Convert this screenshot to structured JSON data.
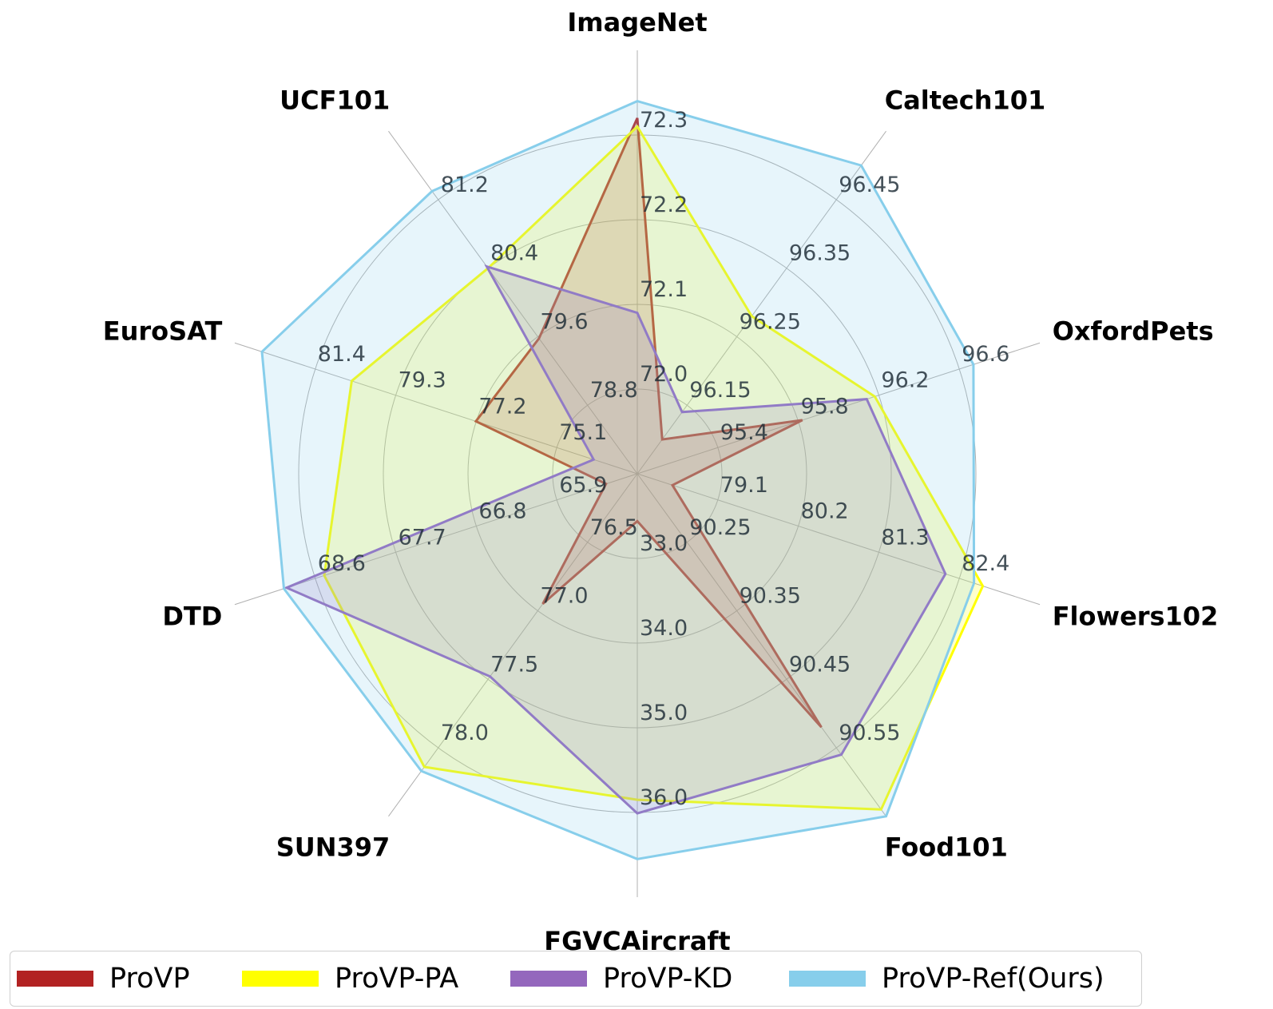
{
  "chart_data": {
    "type": "radar",
    "axes": [
      "ImageNet",
      "Caltech101",
      "OxfordPets",
      "Flowers102",
      "Food101",
      "FGVCAircraft",
      "SUN397",
      "DTD",
      "EuroSAT",
      "UCF101"
    ],
    "ticks": [
      [
        "72.0",
        "72.1",
        "72.2",
        "72.3"
      ],
      [
        "96.15",
        "96.25",
        "96.35",
        "96.45"
      ],
      [
        "95.4",
        "95.8",
        "96.2",
        "96.6"
      ],
      [
        "79.1",
        "80.2",
        "81.3",
        "82.4"
      ],
      [
        "90.25",
        "90.35",
        "90.45",
        "90.55"
      ],
      [
        "33.0",
        "34.0",
        "35.0",
        "36.0"
      ],
      [
        "76.5",
        "77.0",
        "77.5",
        "78.0"
      ],
      [
        "65.9",
        "66.8",
        "67.7",
        "68.6"
      ],
      [
        "75.1",
        "77.2",
        "79.3",
        "81.4"
      ],
      [
        "78.8",
        "79.6",
        "80.4",
        "81.2"
      ]
    ],
    "series": [
      {
        "name": "ProVP",
        "color": "#b22222",
        "values": [
          72.32,
          96.1,
          95.82,
          78.48,
          90.52,
          32.56,
          76.95,
          65.35,
          77.21,
          79.58
        ]
      },
      {
        "name": "ProVP-PA",
        "color": "#ffff00",
        "values": [
          72.31,
          96.28,
          96.18,
          82.72,
          90.64,
          35.85,
          78.14,
          68.5,
          80.45,
          80.4
        ]
      },
      {
        "name": "ProVP-KD",
        "color": "#9467bd",
        "values": [
          72.09,
          96.14,
          96.14,
          82.21,
          90.56,
          36.01,
          77.48,
          68.92,
          74.14,
          80.42
        ]
      },
      {
        "name": "ProVP-Ref(Ours)",
        "color": "#87ceeb",
        "values": [
          72.34,
          96.5,
          96.67,
          82.6,
          90.65,
          36.55,
          78.17,
          68.95,
          82.79,
          81.3
        ]
      }
    ],
    "legend_position": "bottom",
    "grid": true
  }
}
